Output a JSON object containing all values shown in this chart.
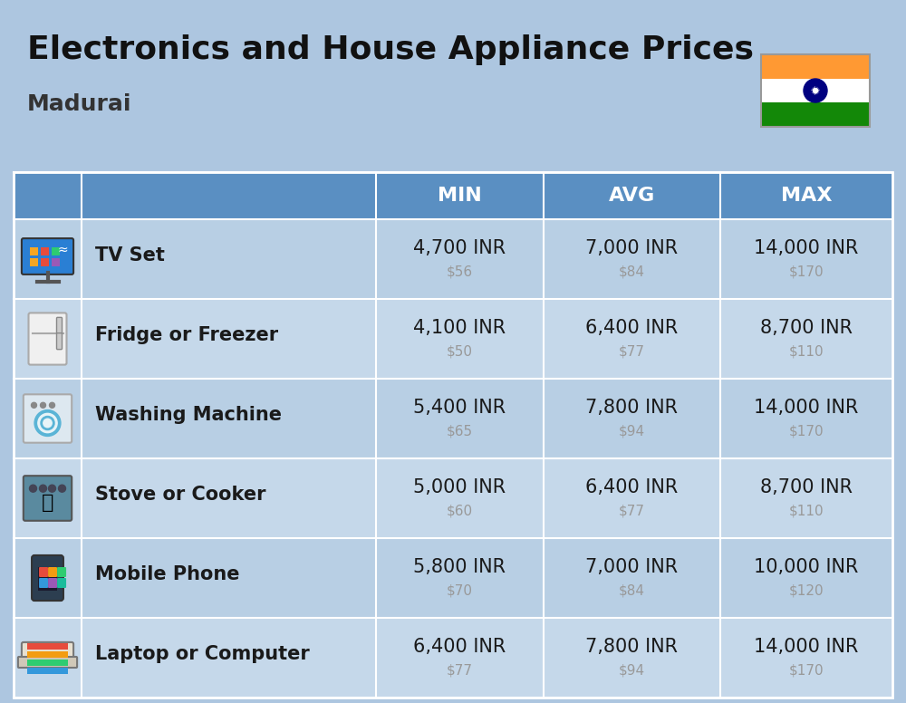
{
  "title": "Electronics and House Appliance Prices",
  "subtitle": "Madurai",
  "background_color": "#adc6e0",
  "header_color": "#5a8fc2",
  "header_text_color": "#ffffff",
  "cell_text_color": "#1a1a1a",
  "usd_text_color": "#999999",
  "divider_color": "#ffffff",
  "col_headers": [
    "MIN",
    "AVG",
    "MAX"
  ],
  "row_colors": [
    "#b8cfe4",
    "#c5d8ea"
  ],
  "items": [
    {
      "name": "TV Set",
      "min_inr": "4,700 INR",
      "min_usd": "$56",
      "avg_inr": "7,000 INR",
      "avg_usd": "$84",
      "max_inr": "14,000 INR",
      "max_usd": "$170"
    },
    {
      "name": "Fridge or Freezer",
      "min_inr": "4,100 INR",
      "min_usd": "$50",
      "avg_inr": "6,400 INR",
      "avg_usd": "$77",
      "max_inr": "8,700 INR",
      "max_usd": "$110"
    },
    {
      "name": "Washing Machine",
      "min_inr": "5,400 INR",
      "min_usd": "$65",
      "avg_inr": "7,800 INR",
      "avg_usd": "$94",
      "max_inr": "14,000 INR",
      "max_usd": "$170"
    },
    {
      "name": "Stove or Cooker",
      "min_inr": "5,000 INR",
      "min_usd": "$60",
      "avg_inr": "6,400 INR",
      "avg_usd": "$77",
      "max_inr": "8,700 INR",
      "max_usd": "$110"
    },
    {
      "name": "Mobile Phone",
      "min_inr": "5,800 INR",
      "min_usd": "$70",
      "avg_inr": "7,000 INR",
      "avg_usd": "$84",
      "max_inr": "10,000 INR",
      "max_usd": "$120"
    },
    {
      "name": "Laptop or Computer",
      "min_inr": "6,400 INR",
      "min_usd": "$77",
      "avg_inr": "7,800 INR",
      "avg_usd": "$94",
      "max_inr": "14,000 INR",
      "max_usd": "$170"
    }
  ],
  "flag_orange": "#FF9933",
  "flag_white": "#FFFFFF",
  "flag_green": "#138808",
  "chakra_color": "#000080",
  "title_fontsize": 26,
  "subtitle_fontsize": 18,
  "header_fontsize": 16,
  "item_name_fontsize": 15,
  "inr_fontsize": 15,
  "usd_fontsize": 11
}
